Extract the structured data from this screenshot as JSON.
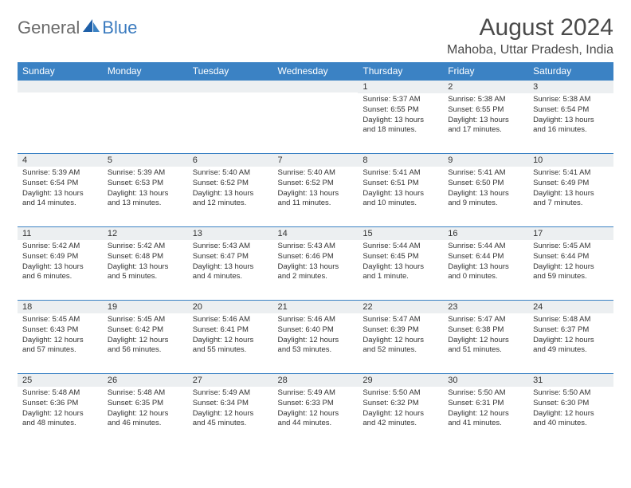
{
  "logo": {
    "text1": "General",
    "text2": "Blue"
  },
  "title": "August 2024",
  "location": "Mahoba, Uttar Pradesh, India",
  "colors": {
    "header_bg": "#3b82c4",
    "header_text": "#ffffff",
    "daynum_bg": "#eceff1",
    "border": "#3b82c4",
    "body_text": "#333333",
    "logo_gray": "#6b6b6b",
    "logo_blue": "#3b7bbf"
  },
  "day_headers": [
    "Sunday",
    "Monday",
    "Tuesday",
    "Wednesday",
    "Thursday",
    "Friday",
    "Saturday"
  ],
  "weeks": [
    [
      {
        "n": "",
        "sr": "",
        "ss": "",
        "dl": ""
      },
      {
        "n": "",
        "sr": "",
        "ss": "",
        "dl": ""
      },
      {
        "n": "",
        "sr": "",
        "ss": "",
        "dl": ""
      },
      {
        "n": "",
        "sr": "",
        "ss": "",
        "dl": ""
      },
      {
        "n": "1",
        "sr": "Sunrise: 5:37 AM",
        "ss": "Sunset: 6:55 PM",
        "dl": "Daylight: 13 hours and 18 minutes."
      },
      {
        "n": "2",
        "sr": "Sunrise: 5:38 AM",
        "ss": "Sunset: 6:55 PM",
        "dl": "Daylight: 13 hours and 17 minutes."
      },
      {
        "n": "3",
        "sr": "Sunrise: 5:38 AM",
        "ss": "Sunset: 6:54 PM",
        "dl": "Daylight: 13 hours and 16 minutes."
      }
    ],
    [
      {
        "n": "4",
        "sr": "Sunrise: 5:39 AM",
        "ss": "Sunset: 6:54 PM",
        "dl": "Daylight: 13 hours and 14 minutes."
      },
      {
        "n": "5",
        "sr": "Sunrise: 5:39 AM",
        "ss": "Sunset: 6:53 PM",
        "dl": "Daylight: 13 hours and 13 minutes."
      },
      {
        "n": "6",
        "sr": "Sunrise: 5:40 AM",
        "ss": "Sunset: 6:52 PM",
        "dl": "Daylight: 13 hours and 12 minutes."
      },
      {
        "n": "7",
        "sr": "Sunrise: 5:40 AM",
        "ss": "Sunset: 6:52 PM",
        "dl": "Daylight: 13 hours and 11 minutes."
      },
      {
        "n": "8",
        "sr": "Sunrise: 5:41 AM",
        "ss": "Sunset: 6:51 PM",
        "dl": "Daylight: 13 hours and 10 minutes."
      },
      {
        "n": "9",
        "sr": "Sunrise: 5:41 AM",
        "ss": "Sunset: 6:50 PM",
        "dl": "Daylight: 13 hours and 9 minutes."
      },
      {
        "n": "10",
        "sr": "Sunrise: 5:41 AM",
        "ss": "Sunset: 6:49 PM",
        "dl": "Daylight: 13 hours and 7 minutes."
      }
    ],
    [
      {
        "n": "11",
        "sr": "Sunrise: 5:42 AM",
        "ss": "Sunset: 6:49 PM",
        "dl": "Daylight: 13 hours and 6 minutes."
      },
      {
        "n": "12",
        "sr": "Sunrise: 5:42 AM",
        "ss": "Sunset: 6:48 PM",
        "dl": "Daylight: 13 hours and 5 minutes."
      },
      {
        "n": "13",
        "sr": "Sunrise: 5:43 AM",
        "ss": "Sunset: 6:47 PM",
        "dl": "Daylight: 13 hours and 4 minutes."
      },
      {
        "n": "14",
        "sr": "Sunrise: 5:43 AM",
        "ss": "Sunset: 6:46 PM",
        "dl": "Daylight: 13 hours and 2 minutes."
      },
      {
        "n": "15",
        "sr": "Sunrise: 5:44 AM",
        "ss": "Sunset: 6:45 PM",
        "dl": "Daylight: 13 hours and 1 minute."
      },
      {
        "n": "16",
        "sr": "Sunrise: 5:44 AM",
        "ss": "Sunset: 6:44 PM",
        "dl": "Daylight: 13 hours and 0 minutes."
      },
      {
        "n": "17",
        "sr": "Sunrise: 5:45 AM",
        "ss": "Sunset: 6:44 PM",
        "dl": "Daylight: 12 hours and 59 minutes."
      }
    ],
    [
      {
        "n": "18",
        "sr": "Sunrise: 5:45 AM",
        "ss": "Sunset: 6:43 PM",
        "dl": "Daylight: 12 hours and 57 minutes."
      },
      {
        "n": "19",
        "sr": "Sunrise: 5:45 AM",
        "ss": "Sunset: 6:42 PM",
        "dl": "Daylight: 12 hours and 56 minutes."
      },
      {
        "n": "20",
        "sr": "Sunrise: 5:46 AM",
        "ss": "Sunset: 6:41 PM",
        "dl": "Daylight: 12 hours and 55 minutes."
      },
      {
        "n": "21",
        "sr": "Sunrise: 5:46 AM",
        "ss": "Sunset: 6:40 PM",
        "dl": "Daylight: 12 hours and 53 minutes."
      },
      {
        "n": "22",
        "sr": "Sunrise: 5:47 AM",
        "ss": "Sunset: 6:39 PM",
        "dl": "Daylight: 12 hours and 52 minutes."
      },
      {
        "n": "23",
        "sr": "Sunrise: 5:47 AM",
        "ss": "Sunset: 6:38 PM",
        "dl": "Daylight: 12 hours and 51 minutes."
      },
      {
        "n": "24",
        "sr": "Sunrise: 5:48 AM",
        "ss": "Sunset: 6:37 PM",
        "dl": "Daylight: 12 hours and 49 minutes."
      }
    ],
    [
      {
        "n": "25",
        "sr": "Sunrise: 5:48 AM",
        "ss": "Sunset: 6:36 PM",
        "dl": "Daylight: 12 hours and 48 minutes."
      },
      {
        "n": "26",
        "sr": "Sunrise: 5:48 AM",
        "ss": "Sunset: 6:35 PM",
        "dl": "Daylight: 12 hours and 46 minutes."
      },
      {
        "n": "27",
        "sr": "Sunrise: 5:49 AM",
        "ss": "Sunset: 6:34 PM",
        "dl": "Daylight: 12 hours and 45 minutes."
      },
      {
        "n": "28",
        "sr": "Sunrise: 5:49 AM",
        "ss": "Sunset: 6:33 PM",
        "dl": "Daylight: 12 hours and 44 minutes."
      },
      {
        "n": "29",
        "sr": "Sunrise: 5:50 AM",
        "ss": "Sunset: 6:32 PM",
        "dl": "Daylight: 12 hours and 42 minutes."
      },
      {
        "n": "30",
        "sr": "Sunrise: 5:50 AM",
        "ss": "Sunset: 6:31 PM",
        "dl": "Daylight: 12 hours and 41 minutes."
      },
      {
        "n": "31",
        "sr": "Sunrise: 5:50 AM",
        "ss": "Sunset: 6:30 PM",
        "dl": "Daylight: 12 hours and 40 minutes."
      }
    ]
  ]
}
